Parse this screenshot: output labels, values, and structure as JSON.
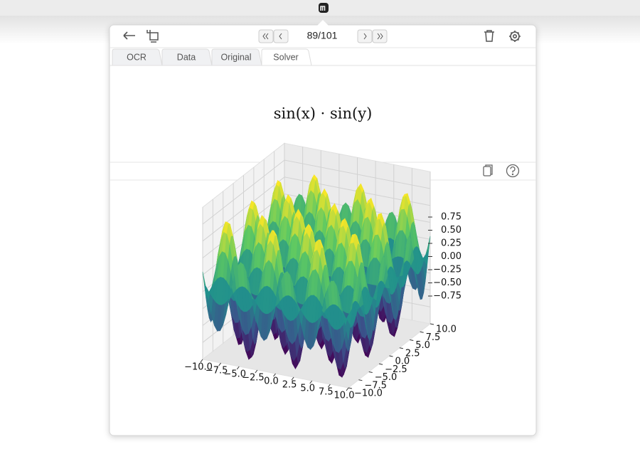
{
  "toolbar": {
    "counter": "89/101"
  },
  "tabs": [
    {
      "label": "OCR",
      "active": false
    },
    {
      "label": "Data",
      "active": false
    },
    {
      "label": "Original",
      "active": false
    },
    {
      "label": "Solver",
      "active": true
    }
  ],
  "formula": "sin(x) · sin(y)",
  "plot": {
    "x_ticks": [
      "−10.0",
      "−7.5",
      "−5.0",
      "−2.5",
      "0.0",
      "2.5",
      "5.0",
      "7.5",
      "10.0"
    ],
    "y_ticks": [
      "−10.0",
      "−7.5",
      "−5.0",
      "−2.5",
      "0.0",
      "2.5",
      "5.0",
      "7.5",
      "10.0"
    ],
    "z_ticks": [
      "0.75",
      "0.50",
      "0.25",
      "0.00",
      "−0.25",
      "−0.50",
      "−0.75"
    ]
  }
}
